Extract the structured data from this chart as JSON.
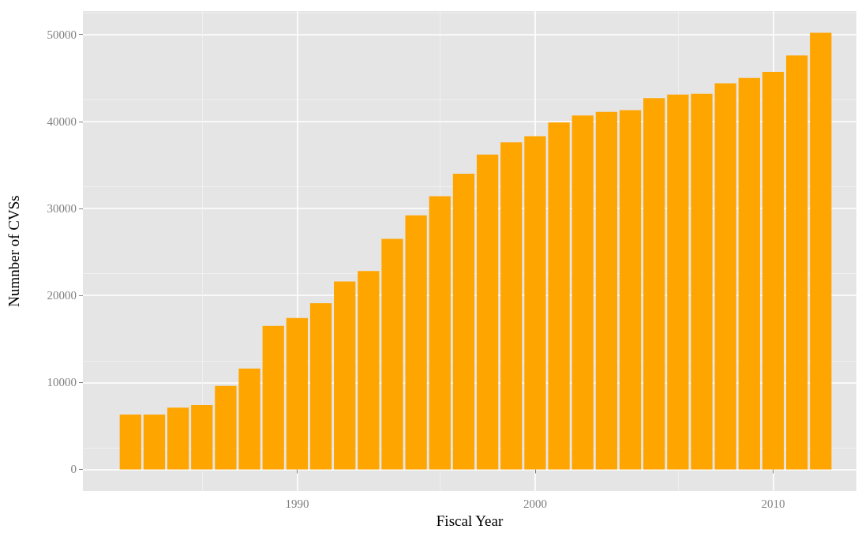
{
  "chart_data": {
    "type": "bar",
    "xlabel": "Fiscal Year",
    "ylabel": "Numnber of CVSs",
    "x": [
      1983,
      1984,
      1985,
      1986,
      1987,
      1988,
      1989,
      1990,
      1991,
      1992,
      1993,
      1994,
      1995,
      1996,
      1997,
      1998,
      1999,
      2000,
      2001,
      2002,
      2003,
      2004,
      2005,
      2006,
      2007,
      2008,
      2009,
      2010,
      2011,
      2012
    ],
    "values": [
      6300,
      6300,
      7100,
      7400,
      9600,
      11600,
      16500,
      17400,
      19100,
      21600,
      22800,
      26500,
      29200,
      31400,
      34000,
      36200,
      37600,
      38300,
      39900,
      40700,
      41100,
      41300,
      42700,
      43100,
      43200,
      44400,
      45000,
      45700,
      47600,
      50200
    ],
    "color": "#ffa500",
    "xlim": [
      1981,
      2013.5
    ],
    "xticks": [
      1990,
      2000,
      2010
    ],
    "ylim": [
      -2500,
      52700
    ],
    "yticks": [
      0,
      10000,
      20000,
      30000,
      40000,
      50000
    ],
    "grid": true
  }
}
